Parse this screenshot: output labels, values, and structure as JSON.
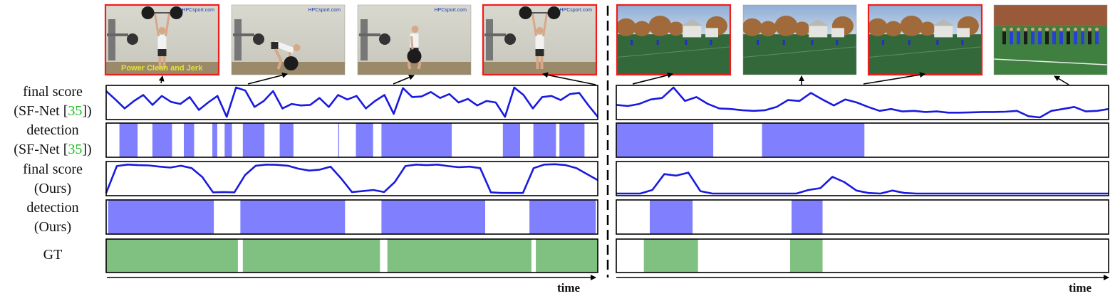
{
  "row_labels": {
    "final_score_sf": {
      "line1": "final score",
      "line2_prefix": "(SF-Net [",
      "ref": "35",
      "line2_suffix": "])"
    },
    "detection_sf": {
      "line1": "detection",
      "line2_prefix": "(SF-Net [",
      "ref": "35",
      "line2_suffix": "])"
    },
    "final_score_ours": {
      "line1": "final score",
      "line2": "(Ours)"
    },
    "detection_ours": {
      "line1": "detection",
      "line2": "(Ours)"
    },
    "gt": "GT"
  },
  "left_video": {
    "frames": [
      {
        "watermark": "HPCsport.com",
        "caption": "Power Clean and Jerk",
        "highlighted": true,
        "pose": "overhead"
      },
      {
        "watermark": "HPCsport.com",
        "caption": "",
        "highlighted": false,
        "pose": "deadlift"
      },
      {
        "watermark": "HPCsport.com",
        "caption": "",
        "highlighted": false,
        "pose": "pull"
      },
      {
        "watermark": "HPCsport.com",
        "caption": "",
        "highlighted": true,
        "pose": "overhead"
      }
    ],
    "sf_score": [
      0.88,
      0.6,
      0.3,
      0.55,
      0.75,
      0.42,
      0.72,
      0.52,
      0.45,
      0.68,
      0.25,
      0.5,
      0.72,
      0.02,
      1.0,
      0.9,
      0.35,
      0.55,
      0.88,
      0.3,
      0.45,
      0.4,
      0.42,
      0.65,
      0.35,
      0.75,
      0.6,
      0.72,
      0.3,
      0.55,
      0.75,
      0.12,
      0.98,
      0.68,
      0.7,
      0.85,
      0.65,
      0.78,
      0.5,
      0.62,
      0.4,
      0.55,
      0.5,
      0.02,
      1.0,
      0.75,
      0.3,
      0.68,
      0.72,
      0.58,
      0.78,
      0.82,
      0.4,
      0.02
    ],
    "sf_detection": [
      [
        0.027,
        0.064
      ],
      [
        0.094,
        0.134
      ],
      [
        0.158,
        0.179
      ],
      [
        0.216,
        0.226
      ],
      [
        0.241,
        0.256
      ],
      [
        0.278,
        0.322
      ],
      [
        0.353,
        0.381
      ],
      [
        0.472,
        0.474
      ],
      [
        0.508,
        0.543
      ],
      [
        0.56,
        0.703
      ],
      [
        0.807,
        0.842
      ],
      [
        0.869,
        0.915
      ],
      [
        0.922,
        0.973
      ]
    ],
    "ours_score": [
      0.02,
      0.92,
      0.97,
      0.95,
      0.94,
      0.9,
      0.87,
      0.93,
      0.85,
      0.55,
      0.04,
      0.05,
      0.04,
      0.62,
      0.93,
      0.97,
      0.96,
      0.93,
      0.83,
      0.77,
      0.8,
      0.9,
      0.5,
      0.05,
      0.08,
      0.12,
      0.05,
      0.38,
      0.92,
      0.97,
      0.95,
      0.97,
      0.92,
      0.88,
      0.9,
      0.85,
      0.04,
      0.02,
      0.02,
      0.02,
      0.85,
      0.97,
      0.98,
      0.95,
      0.85,
      0.65,
      0.45
    ],
    "ours_detection": [
      [
        0.004,
        0.219
      ],
      [
        0.273,
        0.486
      ],
      [
        0.56,
        0.771
      ],
      [
        0.861,
        0.996
      ]
    ],
    "gt": [
      [
        0.0,
        0.268
      ],
      [
        0.278,
        0.557
      ],
      [
        0.572,
        0.865
      ],
      [
        0.874,
        1.0
      ]
    ]
  },
  "right_video": {
    "frames": [
      {
        "highlighted": true,
        "scene": "field"
      },
      {
        "highlighted": false,
        "scene": "field"
      },
      {
        "highlighted": true,
        "scene": "field"
      },
      {
        "highlighted": false,
        "scene": "players"
      }
    ],
    "sf_score": [
      0.42,
      0.38,
      0.45,
      0.6,
      0.65,
      1.0,
      0.55,
      0.68,
      0.45,
      0.3,
      0.28,
      0.24,
      0.22,
      0.24,
      0.35,
      0.58,
      0.55,
      0.82,
      0.6,
      0.4,
      0.6,
      0.5,
      0.35,
      0.22,
      0.28,
      0.2,
      0.22,
      0.18,
      0.2,
      0.16,
      0.16,
      0.17,
      0.18,
      0.18,
      0.19,
      0.22,
      0.04,
      0.0,
      0.22,
      0.28,
      0.35,
      0.2,
      0.22,
      0.28
    ],
    "sf_detection": [
      [
        0.0,
        0.197
      ],
      [
        0.296,
        0.504
      ]
    ],
    "ours_score": [
      0.0,
      0.0,
      0.0,
      0.12,
      0.65,
      0.6,
      0.7,
      0.08,
      0.0,
      0.0,
      0.0,
      0.0,
      0.0,
      0.0,
      0.0,
      0.0,
      0.12,
      0.18,
      0.56,
      0.38,
      0.1,
      0.02,
      0.0,
      0.1,
      0.02,
      0.0,
      0.0,
      0.0,
      0.0,
      0.0,
      0.0,
      0.0,
      0.0,
      0.0,
      0.0,
      0.0,
      0.0,
      0.0,
      0.0,
      0.0,
      0.0,
      0.0
    ],
    "ours_detection": [
      [
        0.068,
        0.155
      ],
      [
        0.356,
        0.419
      ]
    ],
    "gt": [
      [
        0.056,
        0.166
      ],
      [
        0.353,
        0.419
      ]
    ]
  },
  "time_label": "time",
  "colors": {
    "score_line": "#1a1adf",
    "detection_fill": "#8080ff",
    "gt_fill": "#80c080",
    "highlight_border": "#ee1c1c",
    "panel_border": "#000000"
  }
}
